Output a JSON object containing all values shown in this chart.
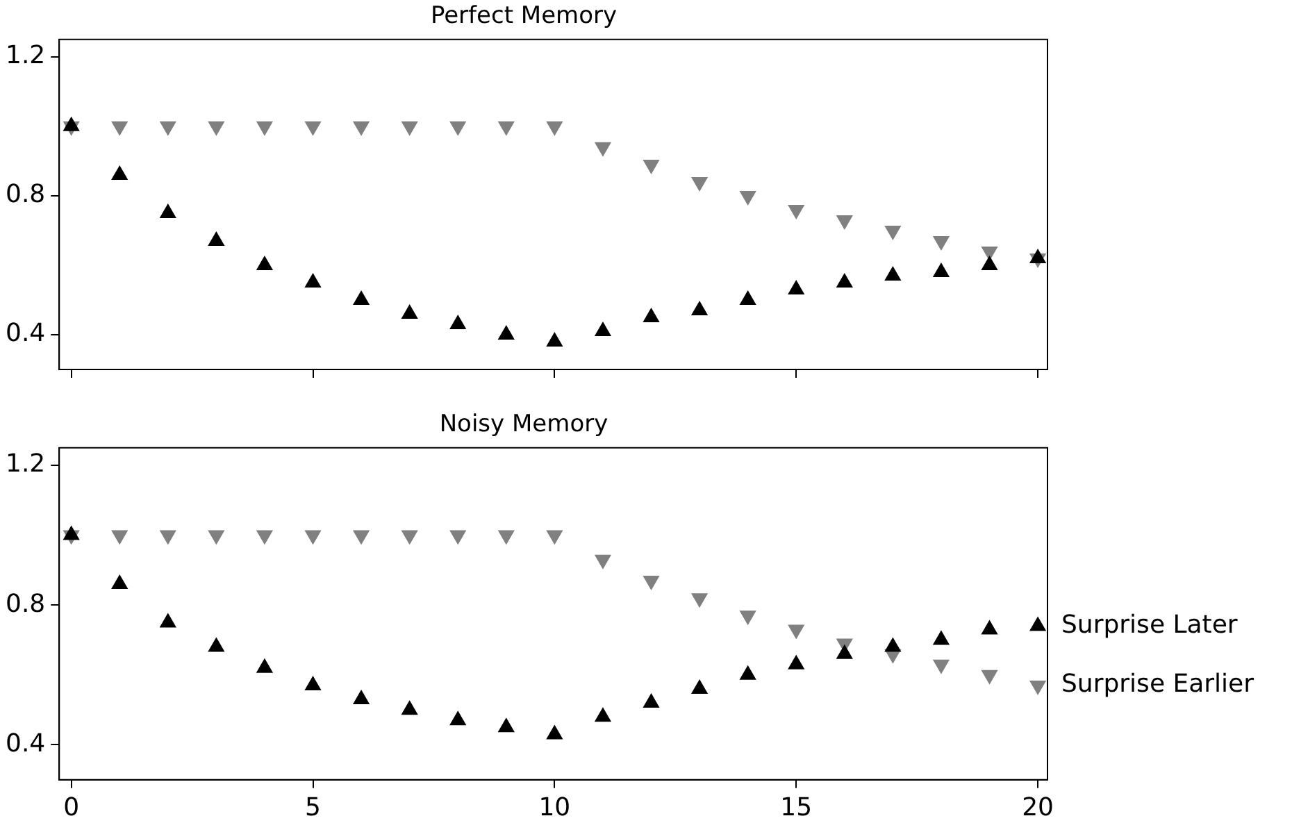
{
  "chart_data": [
    {
      "type": "scatter",
      "title": "Perfect Memory",
      "x": [
        0,
        1,
        2,
        3,
        4,
        5,
        6,
        7,
        8,
        9,
        10,
        11,
        12,
        13,
        14,
        15,
        16,
        17,
        18,
        19,
        20
      ],
      "series": [
        {
          "color": "#808080",
          "marker": "triangle-down",
          "values": [
            1.0,
            1.0,
            1.0,
            1.0,
            1.0,
            1.0,
            1.0,
            1.0,
            1.0,
            1.0,
            1.0,
            0.94,
            0.89,
            0.84,
            0.8,
            0.76,
            0.73,
            0.7,
            0.67,
            0.64,
            0.62
          ]
        },
        {
          "color": "#000000",
          "marker": "triangle",
          "values": [
            1.0,
            0.86,
            0.75,
            0.67,
            0.6,
            0.55,
            0.5,
            0.46,
            0.43,
            0.4,
            0.38,
            0.41,
            0.45,
            0.47,
            0.5,
            0.53,
            0.55,
            0.57,
            0.58,
            0.6,
            0.62
          ]
        }
      ],
      "xlim": [
        -0.25,
        20.2
      ],
      "xticks": [
        0,
        5,
        10,
        15,
        20
      ],
      "ylim": [
        0.3,
        1.25
      ],
      "yticks": [
        0.4,
        0.8,
        1.2
      ],
      "tick_labels": "y",
      "grid": false,
      "legend": false
    },
    {
      "type": "scatter",
      "title": "Noisy Memory",
      "x": [
        0,
        1,
        2,
        3,
        4,
        5,
        6,
        7,
        8,
        9,
        10,
        11,
        12,
        13,
        14,
        15,
        16,
        17,
        18,
        19,
        20
      ],
      "series": [
        {
          "name": "Surprise Earlier",
          "color": "#808080",
          "marker": "triangle-down",
          "values": [
            1.0,
            1.0,
            1.0,
            1.0,
            1.0,
            1.0,
            1.0,
            1.0,
            1.0,
            1.0,
            1.0,
            0.93,
            0.87,
            0.82,
            0.77,
            0.73,
            0.69,
            0.66,
            0.63,
            0.6,
            0.57
          ]
        },
        {
          "name": "Surprise Later",
          "color": "#000000",
          "marker": "triangle",
          "values": [
            1.0,
            0.86,
            0.75,
            0.68,
            0.62,
            0.57,
            0.53,
            0.5,
            0.47,
            0.45,
            0.43,
            0.48,
            0.52,
            0.56,
            0.6,
            0.63,
            0.66,
            0.68,
            0.7,
            0.73,
            0.74
          ]
        }
      ],
      "xlim": [
        -0.25,
        20.2
      ],
      "xticks": [
        0,
        5,
        10,
        15,
        20
      ],
      "ylim": [
        0.3,
        1.25
      ],
      "yticks": [
        0.4,
        0.8,
        1.2
      ],
      "grid": false,
      "legend": false
    }
  ]
}
